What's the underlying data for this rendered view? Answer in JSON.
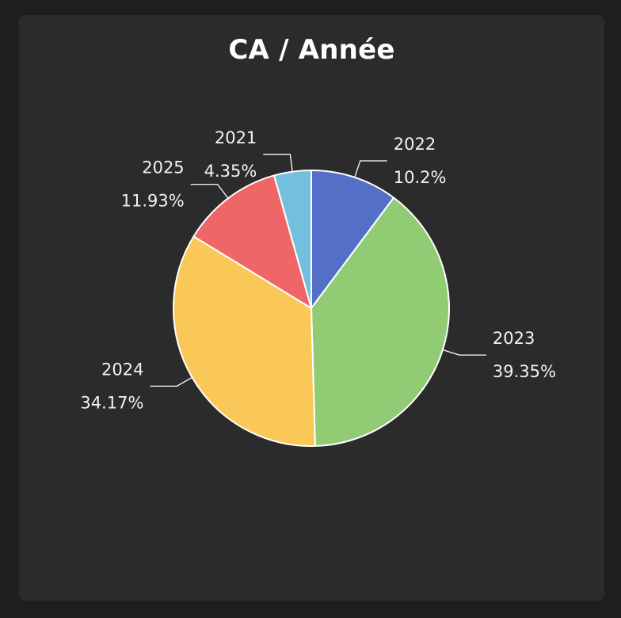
{
  "chart_data": {
    "type": "pie",
    "title": "CA / Année",
    "slices": [
      {
        "label": "2022",
        "value": 10.2,
        "percent_label": "10.2%",
        "color": "#5470c6"
      },
      {
        "label": "2023",
        "value": 39.35,
        "percent_label": "39.35%",
        "color": "#91cc75"
      },
      {
        "label": "2024",
        "value": 34.17,
        "percent_label": "34.17%",
        "color": "#fac858"
      },
      {
        "label": "2025",
        "value": 11.93,
        "percent_label": "11.93%",
        "color": "#ee6666"
      },
      {
        "label": "2021",
        "value": 4.35,
        "percent_label": "4.35%",
        "color": "#73c0de"
      }
    ],
    "background": "#2b2b2b",
    "slice_border_color": "#ffffff",
    "label_color": "#f2f2f2"
  }
}
